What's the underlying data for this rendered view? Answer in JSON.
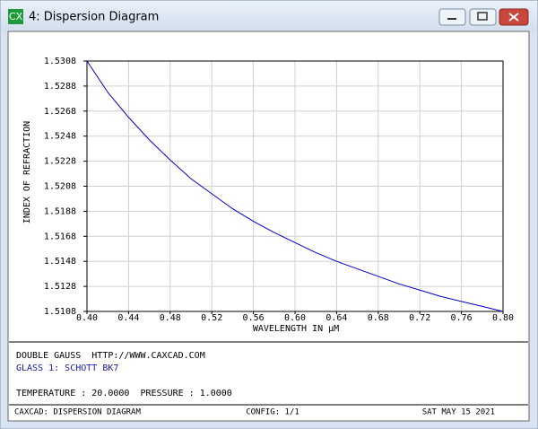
{
  "window": {
    "icon": "CX",
    "title": "4: Dispersion Diagram"
  },
  "chart_data": {
    "type": "line",
    "x_label": "WAVELENGTH IN µM",
    "y_label": "INDEX OF REFRACTION",
    "x": [
      0.4,
      0.42,
      0.44,
      0.46,
      0.48,
      0.5,
      0.52,
      0.54,
      0.56,
      0.58,
      0.6,
      0.62,
      0.64,
      0.66,
      0.68,
      0.7,
      0.72,
      0.74,
      0.76,
      0.78,
      0.8
    ],
    "series": [
      {
        "color": "#0000c8",
        "values": [
          1.5308,
          1.5283,
          1.5263,
          1.5245,
          1.5229,
          1.5214,
          1.5202,
          1.519,
          1.518,
          1.5171,
          1.5163,
          1.5155,
          1.5148,
          1.5142,
          1.5136,
          1.513,
          1.5125,
          1.512,
          1.5116,
          1.5112,
          1.5108
        ]
      }
    ],
    "xlim": [
      0.4,
      0.8
    ],
    "xticks": [
      {
        "value": 0.4,
        "label": "0.40"
      },
      0.44,
      0.48,
      0.52,
      0.56,
      {
        "value": 0.6,
        "label": "0.60"
      },
      0.64,
      0.68,
      0.72,
      0.76,
      {
        "value": 0.8,
        "label": "0.80"
      }
    ],
    "ylim": [
      1.5108,
      1.5308
    ],
    "yticks": [
      1.5108,
      1.5128,
      1.5148,
      1.5168,
      1.5188,
      1.5208,
      1.5228,
      1.5248,
      1.5268,
      1.5288,
      1.5308
    ],
    "grid": true
  },
  "info": {
    "lines": [
      "DOUBLE GAUSS  HTTP://WWW.CAXCAD.COM",
      "GLASS 1: SCHOTT BK7",
      "TEMPERATURE : 20.0000  PRESSURE : 1.0000"
    ]
  },
  "status": {
    "left": "CAXCAD: DISPERSION DIAGRAM",
    "center": "CONFIG: 1/1",
    "right": "SAT MAY 15 2021"
  }
}
